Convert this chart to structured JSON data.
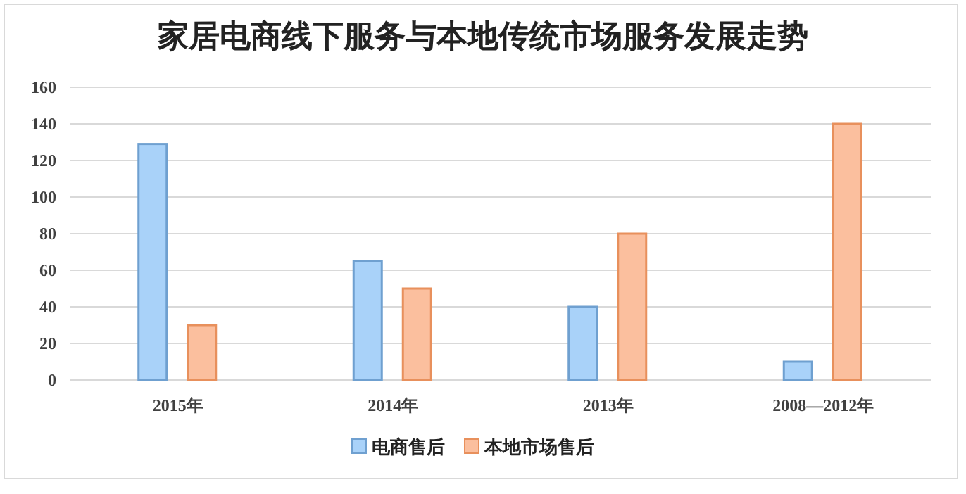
{
  "chart_data": {
    "type": "bar",
    "title": "家居电商线下服务与本地传统市场服务发展走势",
    "categories": [
      "2015年",
      "2014年",
      "2013年",
      "2008—2012年"
    ],
    "series": [
      {
        "name": "电商售后",
        "color": "#a9d2f9",
        "values": [
          129,
          65,
          40,
          10
        ]
      },
      {
        "name": "本地市场售后",
        "color": "#fbbf9e",
        "values": [
          30,
          50,
          80,
          140
        ]
      }
    ],
    "ylim": [
      0,
      160
    ],
    "yticks": [
      0,
      20,
      40,
      60,
      80,
      100,
      120,
      140,
      160
    ],
    "grid": "y",
    "legend": "bottom"
  }
}
